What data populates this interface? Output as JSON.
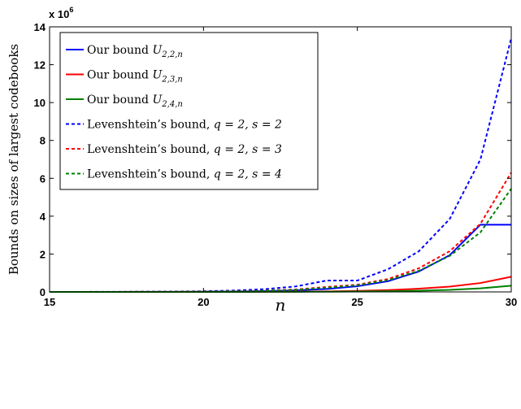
{
  "chart_data": {
    "type": "line",
    "title": "",
    "xlabel": "n",
    "ylabel": "Bounds on sizes of largest codebooks",
    "y_multiplier_label": "x 10",
    "y_multiplier_exponent": "6",
    "xlim": [
      15,
      30
    ],
    "ylim": [
      0,
      14
    ],
    "xticks": [
      "15",
      "20",
      "25",
      "30"
    ],
    "yticks": [
      "0",
      "2",
      "4",
      "6",
      "8",
      "10",
      "12",
      "14"
    ],
    "grid": false,
    "legend_position": "top-left",
    "x": [
      15,
      16,
      17,
      18,
      19,
      20,
      21,
      22,
      23,
      24,
      25,
      26,
      27,
      28,
      29,
      30
    ],
    "series": [
      {
        "name": "Our bound U2,2,n",
        "legend_prefix": "Our bound ",
        "legend_math": "U",
        "legend_sub": "2,2,n",
        "color": "#0000ff",
        "dash": "solid",
        "values": [
          0.0006,
          0.0011,
          0.002,
          0.0037,
          0.0068,
          0.0126,
          0.0235,
          0.044,
          0.083,
          0.157,
          0.298,
          0.567,
          1.08,
          1.94,
          3.55,
          3.55
        ]
      },
      {
        "name": "Our bound U2,3,n",
        "legend_prefix": "Our bound ",
        "legend_math": "U",
        "legend_sub": "2,3,n",
        "color": "#ff0000",
        "dash": "solid",
        "values": [
          0.0002,
          0.0003,
          0.0005,
          0.0009,
          0.0016,
          0.0028,
          0.005,
          0.009,
          0.016,
          0.029,
          0.052,
          0.095,
          0.17,
          0.28,
          0.47,
          0.8
        ]
      },
      {
        "name": "Our bound U2,4,n",
        "legend_prefix": "Our bound ",
        "legend_math": "U",
        "legend_sub": "2,4,n",
        "color": "#008000",
        "dash": "solid",
        "values": [
          0.0001,
          0.0001,
          0.0002,
          0.0004,
          0.0007,
          0.0012,
          0.002,
          0.004,
          0.007,
          0.012,
          0.021,
          0.038,
          0.066,
          0.11,
          0.19,
          0.33
        ]
      },
      {
        "name": "Levenshtein's bound, q = 2, s = 2",
        "legend_prefix": "Levenshtein’s bound, ",
        "legend_math": "q = 2, s = 2",
        "legend_sub": "",
        "color": "#0000ff",
        "dash": "dashed",
        "values": [
          0.0011,
          0.0022,
          0.0044,
          0.0089,
          0.018,
          0.036,
          0.072,
          0.145,
          0.29,
          0.6,
          0.6,
          1.2,
          2.15,
          3.85,
          7.0,
          13.4
        ]
      },
      {
        "name": "Levenshtein's bound, q = 2, s = 3",
        "legend_prefix": "Levenshtein’s bound, ",
        "legend_math": "q = 2, s = 3",
        "legend_sub": "",
        "color": "#ff0000",
        "dash": "dashed",
        "values": [
          0.0005,
          0.001,
          0.002,
          0.004,
          0.008,
          0.016,
          0.032,
          0.065,
          0.13,
          0.26,
          0.38,
          0.68,
          1.25,
          2.15,
          3.6,
          6.3
        ]
      },
      {
        "name": "Levenshtein's bound, q = 2, s = 4",
        "legend_prefix": "Levenshtein’s bound, ",
        "legend_math": "q = 2, s = 4",
        "legend_sub": "",
        "color": "#008000",
        "dash": "dashed",
        "values": [
          0.0004,
          0.0009,
          0.0018,
          0.0036,
          0.007,
          0.014,
          0.028,
          0.056,
          0.11,
          0.22,
          0.35,
          0.62,
          1.12,
          1.9,
          3.15,
          5.45
        ]
      }
    ]
  }
}
